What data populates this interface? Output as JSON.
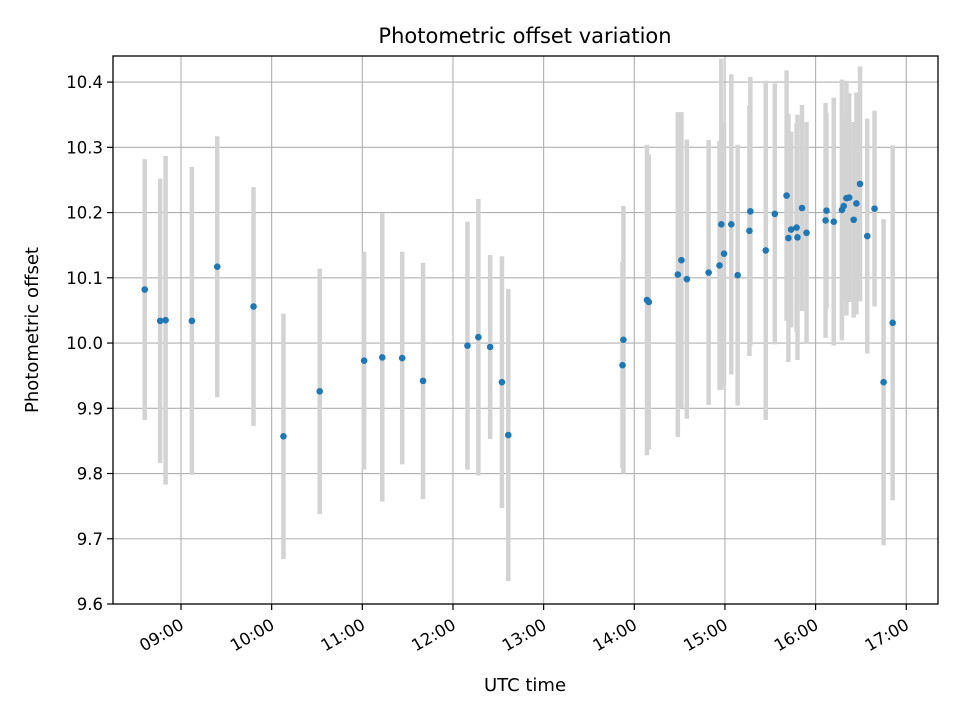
{
  "chart_data": {
    "type": "scatter",
    "title": "Photometric offset variation",
    "xlabel": "UTC time",
    "ylabel": "Photometric offset",
    "x_unit": "UTC time of day (hours)",
    "xlim": [
      8.25,
      17.35
    ],
    "ylim": [
      9.6,
      10.44
    ],
    "x_ticks": [
      9,
      10,
      11,
      12,
      13,
      14,
      15,
      16,
      17
    ],
    "x_tick_labels": [
      "09:00",
      "10:00",
      "11:00",
      "12:00",
      "13:00",
      "14:00",
      "15:00",
      "16:00",
      "17:00"
    ],
    "y_ticks": [
      9.6,
      9.7,
      9.8,
      9.9,
      10.0,
      10.1,
      10.2,
      10.3,
      10.4
    ],
    "y_tick_labels": [
      "9.6",
      "9.7",
      "9.8",
      "9.9",
      "10.0",
      "10.1",
      "10.2",
      "10.3",
      "10.4"
    ],
    "grid": true,
    "legend": "none",
    "colors": {
      "points": "#1f77b4",
      "errorbars": "#d3d3d3",
      "grid": "#b0b0b0",
      "axes": "#000000"
    },
    "points": [
      {
        "x": 8.6,
        "y": 10.082,
        "err": 0.2
      },
      {
        "x": 8.77,
        "y": 10.034,
        "err": 0.218
      },
      {
        "x": 8.83,
        "y": 10.035,
        "err": 0.252
      },
      {
        "x": 9.12,
        "y": 10.034,
        "err": 0.236
      },
      {
        "x": 9.4,
        "y": 10.117,
        "err": 0.2
      },
      {
        "x": 9.8,
        "y": 10.056,
        "err": 0.183
      },
      {
        "x": 10.13,
        "y": 9.857,
        "err": 0.188
      },
      {
        "x": 10.53,
        "y": 9.926,
        "err": 0.188
      },
      {
        "x": 11.02,
        "y": 9.973,
        "err": 0.167
      },
      {
        "x": 11.22,
        "y": 9.978,
        "err": 0.221
      },
      {
        "x": 11.44,
        "y": 9.977,
        "err": 0.163
      },
      {
        "x": 11.67,
        "y": 9.942,
        "err": 0.181
      },
      {
        "x": 12.16,
        "y": 9.996,
        "err": 0.19
      },
      {
        "x": 12.28,
        "y": 10.009,
        "err": 0.212
      },
      {
        "x": 12.41,
        "y": 9.994,
        "err": 0.141
      },
      {
        "x": 12.54,
        "y": 9.94,
        "err": 0.193
      },
      {
        "x": 12.61,
        "y": 9.859,
        "err": 0.224
      },
      {
        "x": 13.87,
        "y": 9.966,
        "err": 0.158
      },
      {
        "x": 13.88,
        "y": 10.005,
        "err": 0.205
      },
      {
        "x": 14.14,
        "y": 10.066,
        "err": 0.238
      },
      {
        "x": 14.16,
        "y": 10.063,
        "err": 0.226
      },
      {
        "x": 14.48,
        "y": 10.105,
        "err": 0.249
      },
      {
        "x": 14.52,
        "y": 10.127,
        "err": 0.227
      },
      {
        "x": 14.58,
        "y": 10.098,
        "err": 0.214
      },
      {
        "x": 14.82,
        "y": 10.108,
        "err": 0.203
      },
      {
        "x": 14.94,
        "y": 10.119,
        "err": 0.191
      },
      {
        "x": 14.96,
        "y": 10.182,
        "err": 0.254
      },
      {
        "x": 14.99,
        "y": 10.137,
        "err": 0.202
      },
      {
        "x": 15.07,
        "y": 10.182,
        "err": 0.23
      },
      {
        "x": 15.14,
        "y": 10.104,
        "err": 0.2
      },
      {
        "x": 15.27,
        "y": 10.172,
        "err": 0.192
      },
      {
        "x": 15.28,
        "y": 10.202,
        "err": 0.206
      },
      {
        "x": 15.45,
        "y": 10.142,
        "err": 0.26
      },
      {
        "x": 15.55,
        "y": 10.198,
        "err": 0.2
      },
      {
        "x": 15.68,
        "y": 10.226,
        "err": 0.192
      },
      {
        "x": 15.7,
        "y": 10.161,
        "err": 0.19
      },
      {
        "x": 15.73,
        "y": 10.174,
        "err": 0.15
      },
      {
        "x": 15.79,
        "y": 10.177,
        "err": 0.16
      },
      {
        "x": 15.8,
        "y": 10.162,
        "err": 0.188
      },
      {
        "x": 15.85,
        "y": 10.207,
        "err": 0.158
      },
      {
        "x": 15.9,
        "y": 10.169,
        "err": 0.17
      },
      {
        "x": 16.12,
        "y": 10.203,
        "err": 0.15
      },
      {
        "x": 16.11,
        "y": 10.188,
        "err": 0.18
      },
      {
        "x": 16.2,
        "y": 10.186,
        "err": 0.19
      },
      {
        "x": 16.29,
        "y": 10.204,
        "err": 0.2
      },
      {
        "x": 16.31,
        "y": 10.21,
        "err": 0.14
      },
      {
        "x": 16.34,
        "y": 10.222,
        "err": 0.18
      },
      {
        "x": 16.37,
        "y": 10.223,
        "err": 0.16
      },
      {
        "x": 16.42,
        "y": 10.189,
        "err": 0.15
      },
      {
        "x": 16.45,
        "y": 10.214,
        "err": 0.17
      },
      {
        "x": 16.49,
        "y": 10.244,
        "err": 0.18
      },
      {
        "x": 16.57,
        "y": 10.164,
        "err": 0.18
      },
      {
        "x": 16.65,
        "y": 10.206,
        "err": 0.15
      },
      {
        "x": 16.75,
        "y": 9.94,
        "err": 0.25
      },
      {
        "x": 16.85,
        "y": 10.031,
        "err": 0.272
      }
    ]
  }
}
